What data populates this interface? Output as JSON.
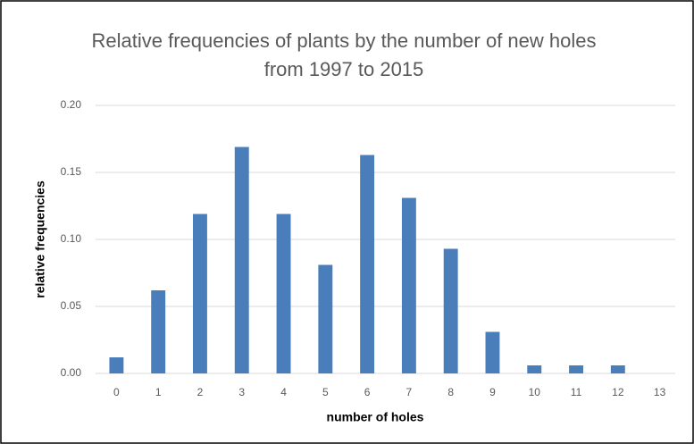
{
  "chart_data": {
    "type": "bar",
    "title": "Relative frequencies of plants by the number of new holes from 1997 to 2015",
    "x_label": "number of holes",
    "y_label": "relative frequencies",
    "categories": [
      "0",
      "1",
      "2",
      "3",
      "4",
      "5",
      "6",
      "7",
      "8",
      "9",
      "10",
      "11",
      "12",
      "13"
    ],
    "values": [
      0.012,
      0.062,
      0.119,
      0.169,
      0.119,
      0.081,
      0.163,
      0.131,
      0.093,
      0.031,
      0.006,
      0.006,
      0.006,
      0
    ],
    "color": "#4a7ebb",
    "ylim": [
      0,
      0.2
    ],
    "yticks": [
      {
        "value": 0,
        "label": "0.00"
      },
      {
        "value": 0.05,
        "label": "0.05"
      },
      {
        "value": 0.1,
        "label": "0.10"
      },
      {
        "value": 0.15,
        "label": "0.15"
      },
      {
        "value": 0.2,
        "label": "0.20"
      }
    ],
    "grid": true
  }
}
